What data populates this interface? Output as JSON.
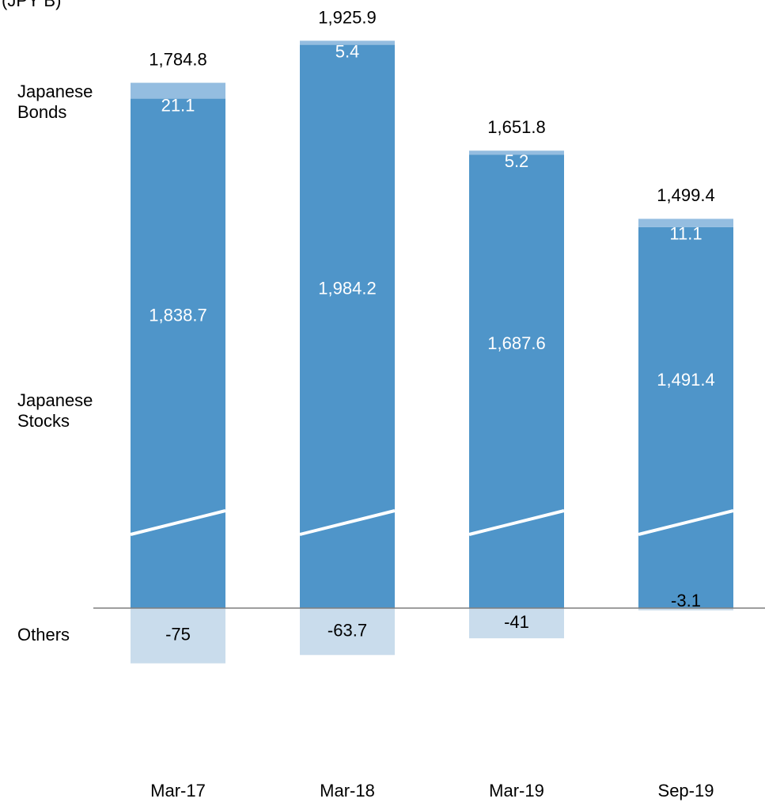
{
  "chart_data": {
    "type": "stacked-bar",
    "unit_label": "(JPY B)",
    "categories": [
      "Mar-17",
      "Mar-18",
      "Mar-19",
      "Sep-19"
    ],
    "series": [
      {
        "name": "Japanese Stocks",
        "color": "#4f95c9",
        "values": [
          1838.7,
          1984.2,
          1687.6,
          1491.4
        ],
        "value_labels": [
          "1,838.7",
          "1,984.2",
          "1,687.6",
          "1,491.4"
        ]
      },
      {
        "name": "Japanese Bonds",
        "color": "#94bde0",
        "values": [
          21.1,
          5.4,
          5.2,
          11.1
        ]
      },
      {
        "name": "Others",
        "color": "#c9dcec",
        "values": [
          -75.0,
          -63.7,
          -41.0,
          -3.1
        ]
      }
    ],
    "totals": {
      "values": [
        1784.8,
        1925.9,
        1651.8,
        1499.4
      ],
      "value_labels": [
        "1,784.8",
        "1,925.9",
        "1,651.8",
        "1,499.4"
      ]
    }
  }
}
